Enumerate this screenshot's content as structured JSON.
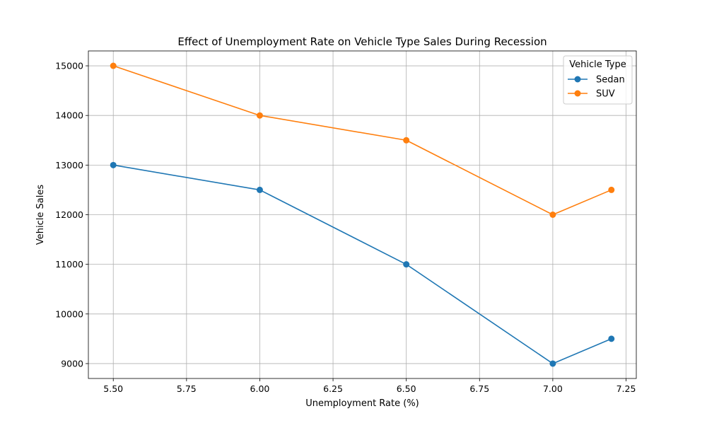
{
  "chart_data": {
    "type": "line",
    "title": "Effect of Unemployment Rate on Vehicle Type Sales During Recession",
    "xlabel": "Unemployment Rate (%)",
    "ylabel": "Vehicle Sales",
    "x": [
      5.5,
      6.0,
      6.5,
      7.0,
      7.2
    ],
    "series": [
      {
        "name": "Sedan",
        "color": "#1f77b4",
        "values": [
          13000,
          12500,
          11000,
          9000,
          9500
        ]
      },
      {
        "name": "SUV",
        "color": "#ff7f0e",
        "values": [
          15000,
          14000,
          13500,
          12000,
          12500
        ]
      }
    ],
    "xlim": [
      5.415,
      7.285
    ],
    "ylim": [
      8700,
      15300
    ],
    "xticks": [
      5.5,
      5.75,
      6.0,
      6.25,
      6.5,
      6.75,
      7.0,
      7.25
    ],
    "xtick_labels": [
      "5.50",
      "5.75",
      "6.00",
      "6.25",
      "6.50",
      "6.75",
      "7.00",
      "7.25"
    ],
    "yticks": [
      9000,
      10000,
      11000,
      12000,
      13000,
      14000,
      15000
    ],
    "ytick_labels": [
      "9000",
      "10000",
      "11000",
      "12000",
      "13000",
      "14000",
      "15000"
    ],
    "grid": true,
    "legend": {
      "title": "Vehicle Type",
      "placement": "top-right"
    }
  }
}
